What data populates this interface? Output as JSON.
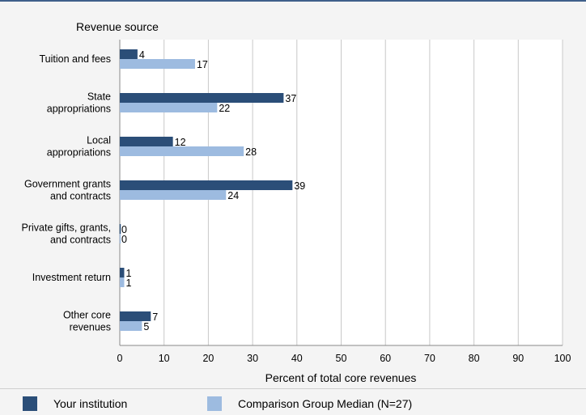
{
  "chart_data": {
    "type": "bar",
    "orientation": "horizontal",
    "title": "",
    "ylabel": "Revenue source",
    "xlabel": "Percent of total core revenues",
    "xlim": [
      0,
      100
    ],
    "xticks": [
      0,
      10,
      20,
      30,
      40,
      50,
      60,
      70,
      80,
      90,
      100
    ],
    "grid": true,
    "legend_position": "bottom",
    "categories": [
      [
        "Tuition and fees"
      ],
      [
        "State",
        "appropriations"
      ],
      [
        "Local",
        "appropriations"
      ],
      [
        "Government grants",
        "and contracts"
      ],
      [
        "Private gifts, grants,",
        "and contracts"
      ],
      [
        "Investment return"
      ],
      [
        "Other core",
        "revenues"
      ]
    ],
    "series": [
      {
        "name": "Your institution",
        "color": "#2b4e78",
        "values": [
          4,
          37,
          12,
          39,
          0,
          1,
          7
        ]
      },
      {
        "name": "Comparison Group Median (N=27)",
        "color": "#9dbbe0",
        "values": [
          17,
          22,
          28,
          24,
          0,
          1,
          5
        ]
      }
    ]
  }
}
